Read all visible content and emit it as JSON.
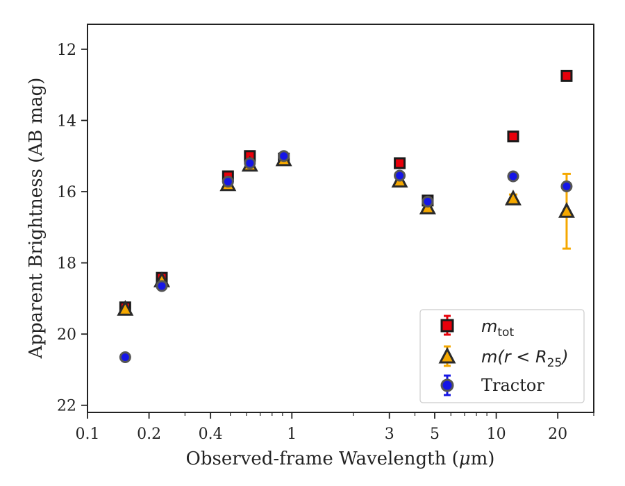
{
  "chart_data": {
    "type": "scatter",
    "xlabel_text": "Observed-frame Wavelength (",
    "xlabel_unit_mu": "μ",
    "xlabel_unit_rest": "m)",
    "ylabel": "Apparent Brightness (AB mag)",
    "xscale": "log",
    "xlim": [
      0.1,
      30
    ],
    "ylim": [
      22.2,
      11.3
    ],
    "y_inverted": true,
    "grid": false,
    "legend_placement": "lower-right",
    "x_major_ticks": [
      0.1,
      0.2,
      0.4,
      1,
      3,
      5,
      10,
      20
    ],
    "x_tick_labels": [
      "0.1",
      "0.2",
      "0.4",
      "1",
      "3",
      "5",
      "10",
      "20"
    ],
    "y_major_ticks": [
      12,
      14,
      16,
      18,
      20,
      22
    ],
    "y_tick_labels": [
      "12",
      "14",
      "16",
      "18",
      "20",
      "22"
    ],
    "series": [
      {
        "key": "mtot",
        "legend_main": "m",
        "legend_sub": "tot",
        "marker": "square",
        "color": "#e8000b",
        "edge": "#1a1a1a",
        "x": [
          0.153,
          0.231,
          0.487,
          0.623,
          0.913,
          3.37,
          4.62,
          12.1,
          22.1
        ],
        "y": [
          19.25,
          18.42,
          15.57,
          15.0,
          15.07,
          15.2,
          16.25,
          14.45,
          12.75
        ],
        "yerr": [
          0.06,
          0.06,
          0.03,
          0.03,
          0.03,
          0.03,
          0.03,
          0.05,
          0.05
        ]
      },
      {
        "key": "m_r25",
        "legend_main": "m(r < R",
        "legend_sub": "25",
        "legend_end": ")",
        "marker": "triangle",
        "color": "#f5a800",
        "edge": "#2a2a2a",
        "x": [
          0.153,
          0.231,
          0.487,
          0.623,
          0.913,
          3.37,
          4.62,
          12.1,
          22.1
        ],
        "y": [
          19.3,
          18.5,
          15.8,
          15.25,
          15.1,
          15.7,
          16.45,
          16.2,
          16.55
        ],
        "yerr": [
          0.06,
          0.06,
          0.03,
          0.03,
          0.03,
          0.03,
          0.03,
          0.12,
          1.05
        ]
      },
      {
        "key": "tractor",
        "legend_main": "Tractor",
        "marker": "circle",
        "color": "#1515e6",
        "edge": "#555555",
        "x": [
          0.153,
          0.231,
          0.487,
          0.623,
          0.913,
          3.37,
          4.62,
          12.1,
          22.1
        ],
        "y": [
          20.65,
          18.65,
          15.72,
          15.2,
          15.0,
          15.55,
          16.28,
          15.57,
          15.85
        ],
        "yerr": [
          0.05,
          0.05,
          0.03,
          0.03,
          0.03,
          0.03,
          0.03,
          0.04,
          0.04
        ]
      }
    ]
  }
}
